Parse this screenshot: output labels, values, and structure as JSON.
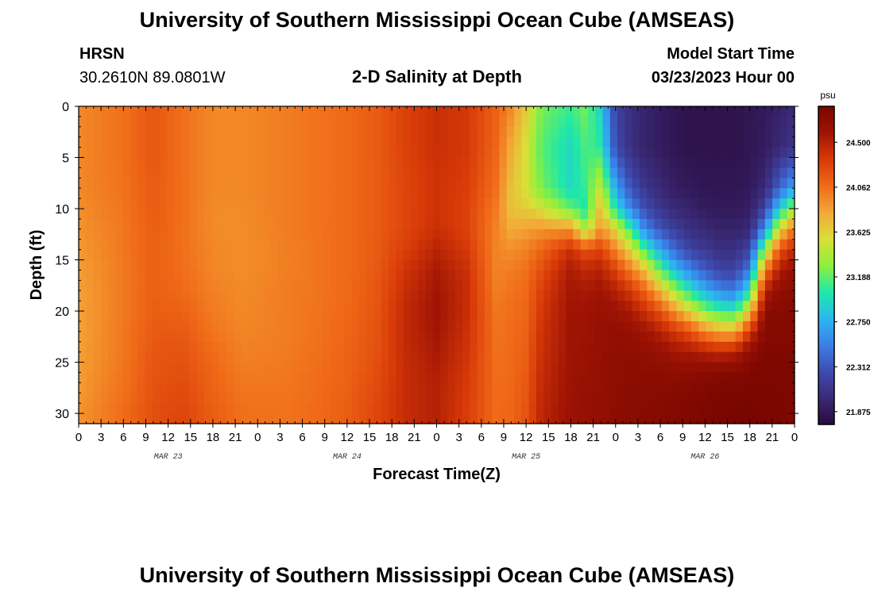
{
  "header": {
    "title": "University of Southern Mississippi Ocean Cube (AMSEAS)",
    "station_id": "HRSN",
    "coordinates": "30.2610N  89.0801W",
    "chart_title": "2-D Salinity at Depth",
    "model_start_label": "Model Start Time",
    "model_start_value": "03/23/2023 Hour 00"
  },
  "footer": {
    "title": "University of Southern Mississippi Ocean Cube (AMSEAS)"
  },
  "chart_data": {
    "type": "heatmap",
    "title": "2-D Salinity at Depth",
    "xlabel": "Forecast Time(Z)",
    "ylabel": "Depth (ft)",
    "x_range_hours": [
      0,
      96
    ],
    "y_range_ft": [
      0,
      31
    ],
    "x_tick_labels": [
      "0",
      "3",
      "6",
      "9",
      "12",
      "15",
      "18",
      "21",
      "0",
      "3",
      "6",
      "9",
      "12",
      "15",
      "18",
      "21",
      "0",
      "3",
      "6",
      "9",
      "12",
      "15",
      "18",
      "21",
      "0",
      "3",
      "6",
      "9",
      "12",
      "15",
      "18",
      "21",
      "0"
    ],
    "date_labels": [
      {
        "label": "MAR 23",
        "hour": 12
      },
      {
        "label": "MAR 24",
        "hour": 36
      },
      {
        "label": "MAR 25",
        "hour": 60
      },
      {
        "label": "MAR 26",
        "hour": 84
      }
    ],
    "y_ticks": [
      0,
      5,
      10,
      15,
      20,
      25,
      30
    ],
    "y_tick_labels": [
      "0",
      "5",
      "10",
      "15",
      "20",
      "25",
      "30"
    ],
    "colorbar": {
      "unit": "psu",
      "min": 21.75,
      "max": 24.85,
      "tick_values": [
        24.5,
        24.062,
        23.625,
        23.188,
        22.75,
        22.312,
        21.875
      ],
      "tick_labels": [
        "24.500",
        "24.062",
        "23.625",
        "23.188",
        "22.750",
        "22.312",
        "21.875"
      ],
      "colors": [
        "#2a0a3c",
        "#3a2a78",
        "#3d4cb0",
        "#3b7fe8",
        "#2cb8f0",
        "#20e8a8",
        "#8ef03c",
        "#d8e038",
        "#f4a838",
        "#f06a18",
        "#d83a08",
        "#a01404",
        "#780600"
      ]
    },
    "time_hours": [
      0,
      6,
      10,
      14,
      18,
      22,
      28,
      32,
      36,
      40,
      44,
      48,
      52,
      56,
      58,
      60,
      62,
      66,
      68,
      70,
      72,
      74,
      76,
      78,
      80,
      82,
      84,
      86,
      88,
      90,
      92,
      94,
      96
    ],
    "depths_ft": [
      0,
      4,
      8,
      10,
      12,
      14,
      16,
      18,
      20,
      22,
      24,
      26,
      28,
      30,
      31
    ],
    "salinity_psu": [
      [
        23.95,
        23.95,
        23.95,
        23.93,
        23.9,
        23.88,
        23.86,
        23.85,
        23.84,
        23.84,
        23.85,
        23.86,
        23.88,
        23.9,
        23.9
      ],
      [
        24.05,
        24.05,
        24.04,
        24.03,
        24.02,
        24.02,
        24.01,
        24.01,
        24.01,
        24.02,
        24.02,
        24.03,
        24.05,
        24.07,
        24.07
      ],
      [
        24.18,
        24.18,
        24.16,
        24.15,
        24.14,
        24.13,
        24.13,
        24.13,
        24.14,
        24.16,
        24.18,
        24.19,
        24.2,
        24.22,
        24.22
      ],
      [
        24.05,
        24.05,
        24.05,
        24.05,
        24.05,
        24.05,
        24.06,
        24.08,
        24.12,
        24.16,
        24.2,
        24.22,
        24.25,
        24.28,
        24.28
      ],
      [
        23.95,
        23.95,
        23.95,
        23.94,
        23.94,
        23.95,
        23.96,
        23.98,
        24.0,
        24.03,
        24.07,
        24.1,
        24.12,
        24.14,
        24.14
      ],
      [
        23.95,
        23.95,
        23.95,
        23.94,
        23.93,
        23.93,
        23.93,
        23.94,
        23.95,
        23.96,
        23.98,
        24.0,
        24.03,
        24.05,
        24.05
      ],
      [
        24.0,
        24.0,
        24.0,
        24.0,
        24.0,
        23.99,
        23.99,
        24.0,
        24.0,
        24.0,
        24.01,
        24.02,
        24.03,
        24.04,
        24.04
      ],
      [
        24.04,
        24.04,
        24.04,
        24.04,
        24.04,
        24.03,
        24.03,
        24.03,
        24.04,
        24.04,
        24.05,
        24.06,
        24.07,
        24.08,
        24.08
      ],
      [
        24.08,
        24.08,
        24.08,
        24.08,
        24.08,
        24.08,
        24.08,
        24.08,
        24.09,
        24.1,
        24.11,
        24.12,
        24.13,
        24.14,
        24.14
      ],
      [
        24.15,
        24.15,
        24.15,
        24.15,
        24.15,
        24.16,
        24.17,
        24.18,
        24.19,
        24.2,
        24.21,
        24.23,
        24.25,
        24.27,
        24.27
      ],
      [
        24.3,
        24.3,
        24.28,
        24.28,
        24.28,
        24.32,
        24.38,
        24.42,
        24.45,
        24.45,
        24.44,
        24.43,
        24.43,
        24.43,
        24.43
      ],
      [
        24.4,
        24.4,
        24.38,
        24.38,
        24.4,
        24.48,
        24.55,
        24.58,
        24.6,
        24.58,
        24.55,
        24.52,
        24.5,
        24.5,
        24.5
      ],
      [
        24.35,
        24.35,
        24.32,
        24.3,
        24.3,
        24.35,
        24.4,
        24.42,
        24.42,
        24.4,
        24.38,
        24.35,
        24.33,
        24.32,
        24.32
      ],
      [
        24.12,
        24.1,
        24.05,
        24.0,
        23.97,
        23.96,
        23.97,
        23.99,
        24.02,
        24.04,
        24.05,
        24.06,
        24.07,
        24.07,
        24.07
      ],
      [
        23.95,
        23.8,
        23.7,
        23.7,
        23.8,
        23.92,
        24.0,
        24.04,
        24.06,
        24.07,
        24.08,
        24.08,
        24.09,
        24.1,
        24.1
      ],
      [
        23.65,
        23.55,
        23.55,
        23.65,
        23.85,
        23.98,
        24.05,
        24.08,
        24.1,
        24.12,
        24.14,
        24.16,
        24.18,
        24.2,
        24.2
      ],
      [
        23.25,
        23.18,
        23.25,
        23.55,
        23.9,
        24.1,
        24.22,
        24.3,
        24.35,
        24.38,
        24.4,
        24.42,
        24.44,
        24.46,
        24.46
      ],
      [
        23.1,
        22.95,
        22.95,
        23.2,
        23.9,
        24.4,
        24.55,
        24.58,
        24.6,
        24.6,
        24.6,
        24.61,
        24.62,
        24.63,
        24.63
      ],
      [
        23.25,
        23.15,
        23.1,
        23.0,
        23.4,
        24.2,
        24.45,
        24.55,
        24.6,
        24.62,
        24.63,
        24.64,
        24.65,
        24.66,
        24.66
      ],
      [
        22.9,
        23.05,
        23.5,
        23.75,
        23.9,
        24.3,
        24.5,
        24.6,
        24.65,
        24.66,
        24.66,
        24.67,
        24.68,
        24.68,
        24.68
      ],
      [
        22.2,
        22.25,
        22.7,
        23.0,
        23.6,
        23.95,
        24.3,
        24.5,
        24.62,
        24.68,
        24.7,
        24.7,
        24.71,
        24.72,
        24.72
      ],
      [
        22.05,
        22.05,
        22.3,
        22.55,
        23.1,
        23.6,
        24.0,
        24.35,
        24.55,
        24.65,
        24.7,
        24.72,
        24.73,
        24.74,
        24.74
      ],
      [
        21.95,
        21.95,
        22.1,
        22.25,
        22.55,
        23.1,
        23.7,
        24.1,
        24.4,
        24.6,
        24.68,
        24.72,
        24.74,
        24.75,
        24.75
      ],
      [
        21.9,
        21.9,
        22.0,
        22.1,
        22.3,
        22.7,
        23.2,
        23.75,
        24.2,
        24.5,
        24.65,
        24.72,
        24.75,
        24.77,
        24.77
      ],
      [
        21.85,
        21.85,
        21.92,
        22.0,
        22.15,
        22.4,
        22.8,
        23.35,
        23.9,
        24.35,
        24.58,
        24.7,
        24.76,
        24.78,
        24.78
      ],
      [
        21.82,
        21.82,
        21.88,
        21.95,
        22.05,
        22.2,
        22.55,
        23.0,
        23.6,
        24.2,
        24.55,
        24.72,
        24.78,
        24.8,
        24.8
      ],
      [
        21.82,
        21.82,
        21.85,
        21.9,
        22.0,
        22.12,
        22.35,
        22.75,
        23.3,
        23.95,
        24.5,
        24.74,
        24.8,
        24.82,
        24.82
      ],
      [
        21.82,
        21.82,
        21.85,
        21.88,
        21.95,
        22.05,
        22.2,
        22.55,
        23.1,
        23.8,
        24.45,
        24.76,
        24.82,
        24.84,
        24.84
      ],
      [
        21.82,
        21.82,
        21.85,
        21.88,
        21.95,
        22.05,
        22.2,
        22.5,
        23.05,
        23.8,
        24.5,
        24.78,
        24.83,
        24.85,
        24.85
      ],
      [
        21.85,
        21.85,
        21.88,
        21.92,
        22.0,
        22.2,
        22.5,
        23.0,
        23.7,
        24.35,
        24.7,
        24.8,
        24.84,
        24.85,
        24.85
      ],
      [
        21.88,
        21.9,
        22.0,
        22.2,
        22.6,
        23.3,
        24.0,
        24.5,
        24.72,
        24.78,
        24.8,
        24.82,
        24.83,
        24.84,
        24.84
      ],
      [
        21.95,
        22.0,
        22.4,
        22.9,
        23.6,
        24.2,
        24.55,
        24.7,
        24.76,
        24.78,
        24.8,
        24.81,
        24.82,
        24.82,
        24.82
      ],
      [
        22.0,
        22.1,
        22.7,
        23.4,
        24.05,
        24.45,
        24.65,
        24.72,
        24.76,
        24.78,
        24.8,
        24.8,
        24.8,
        24.8,
        24.8
      ]
    ]
  }
}
